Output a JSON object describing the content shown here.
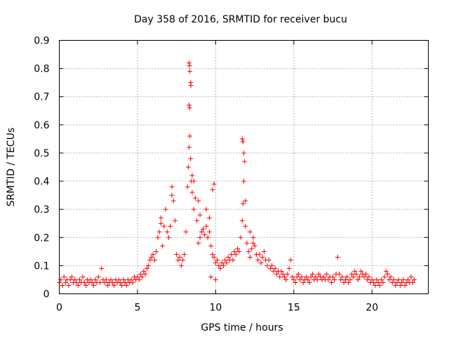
{
  "chart_data": {
    "type": "scatter",
    "title": "Day 358 of 2016, SRMTID for receiver bucu",
    "xlabel": "GPS time / hours",
    "ylabel": "SRMTID / TECUs",
    "xlim": [
      0,
      23.6
    ],
    "ylim": [
      0,
      0.9
    ],
    "xticks": [
      0,
      5,
      10,
      15,
      20
    ],
    "yticks": [
      0,
      0.1,
      0.2,
      0.3,
      0.4,
      0.5,
      0.6,
      0.7,
      0.8,
      0.9
    ],
    "xtick_labels": [
      "0",
      "5",
      "10",
      "15",
      "20"
    ],
    "ytick_labels": [
      "0",
      "0.1",
      "0.2",
      "0.3",
      "0.4",
      "0.5",
      "0.6",
      "0.7",
      "0.8",
      "0.9"
    ],
    "grid": true,
    "marker": "+",
    "color": "#ff0000",
    "series": [
      {
        "name": "SRMTID",
        "points": [
          [
            0.0,
            0.04
          ],
          [
            0.1,
            0.05
          ],
          [
            0.2,
            0.03
          ],
          [
            0.3,
            0.06
          ],
          [
            0.4,
            0.04
          ],
          [
            0.5,
            0.05
          ],
          [
            0.6,
            0.03
          ],
          [
            0.7,
            0.05
          ],
          [
            0.8,
            0.06
          ],
          [
            0.9,
            0.04
          ],
          [
            1.0,
            0.05
          ],
          [
            1.1,
            0.04
          ],
          [
            1.2,
            0.03
          ],
          [
            1.3,
            0.05
          ],
          [
            1.4,
            0.04
          ],
          [
            1.5,
            0.06
          ],
          [
            1.6,
            0.04
          ],
          [
            1.7,
            0.03
          ],
          [
            1.8,
            0.05
          ],
          [
            1.9,
            0.04
          ],
          [
            2.0,
            0.05
          ],
          [
            2.1,
            0.04
          ],
          [
            2.2,
            0.03
          ],
          [
            2.3,
            0.05
          ],
          [
            2.4,
            0.04
          ],
          [
            2.5,
            0.06
          ],
          [
            2.6,
            0.04
          ],
          [
            2.7,
            0.09
          ],
          [
            2.8,
            0.05
          ],
          [
            2.9,
            0.04
          ],
          [
            3.0,
            0.05
          ],
          [
            3.1,
            0.03
          ],
          [
            3.2,
            0.04
          ],
          [
            3.3,
            0.05
          ],
          [
            3.4,
            0.04
          ],
          [
            3.5,
            0.03
          ],
          [
            3.6,
            0.05
          ],
          [
            3.7,
            0.04
          ],
          [
            3.8,
            0.05
          ],
          [
            3.9,
            0.04
          ],
          [
            4.0,
            0.03
          ],
          [
            4.1,
            0.05
          ],
          [
            4.2,
            0.04
          ],
          [
            4.3,
            0.03
          ],
          [
            4.4,
            0.05
          ],
          [
            4.5,
            0.04
          ],
          [
            4.6,
            0.05
          ],
          [
            4.7,
            0.04
          ],
          [
            4.8,
            0.06
          ],
          [
            4.9,
            0.05
          ],
          [
            5.0,
            0.06
          ],
          [
            5.1,
            0.05
          ],
          [
            5.2,
            0.07
          ],
          [
            5.3,
            0.06
          ],
          [
            5.4,
            0.08
          ],
          [
            5.5,
            0.07
          ],
          [
            5.6,
            0.09
          ],
          [
            5.7,
            0.1
          ],
          [
            5.8,
            0.12
          ],
          [
            5.9,
            0.13
          ],
          [
            6.0,
            0.14
          ],
          [
            6.1,
            0.12
          ],
          [
            6.2,
            0.15
          ],
          [
            6.3,
            0.2
          ],
          [
            6.4,
            0.22
          ],
          [
            6.5,
            0.25
          ],
          [
            6.6,
            0.17
          ],
          [
            6.7,
            0.24
          ],
          [
            6.8,
            0.3
          ],
          [
            6.9,
            0.22
          ],
          [
            7.0,
            0.2
          ],
          [
            7.1,
            0.24
          ],
          [
            7.2,
            0.38
          ],
          [
            7.3,
            0.33
          ],
          [
            7.4,
            0.26
          ],
          [
            7.5,
            0.14
          ],
          [
            7.6,
            0.12
          ],
          [
            7.7,
            0.13
          ],
          [
            7.8,
            0.1
          ],
          [
            7.9,
            0.12
          ],
          [
            8.0,
            0.14
          ],
          [
            8.1,
            0.22
          ],
          [
            8.2,
            0.38
          ],
          [
            8.25,
            0.45
          ],
          [
            8.3,
            0.52
          ],
          [
            8.35,
            0.56
          ],
          [
            8.4,
            0.48
          ],
          [
            8.45,
            0.4
          ],
          [
            8.5,
            0.36
          ],
          [
            8.6,
            0.3
          ],
          [
            8.7,
            0.34
          ],
          [
            8.8,
            0.26
          ],
          [
            8.9,
            0.18
          ],
          [
            9.0,
            0.2
          ],
          [
            9.1,
            0.22
          ],
          [
            9.2,
            0.23
          ],
          [
            9.3,
            0.21
          ],
          [
            9.4,
            0.24
          ],
          [
            9.5,
            0.2
          ],
          [
            9.6,
            0.22
          ],
          [
            9.7,
            0.17
          ],
          [
            9.8,
            0.14
          ],
          [
            9.9,
            0.13
          ],
          [
            10.0,
            0.11
          ],
          [
            10.1,
            0.12
          ],
          [
            10.2,
            0.1
          ],
          [
            10.3,
            0.09
          ],
          [
            10.4,
            0.11
          ],
          [
            10.5,
            0.1
          ],
          [
            10.6,
            0.12
          ],
          [
            10.7,
            0.11
          ],
          [
            10.8,
            0.13
          ],
          [
            10.9,
            0.12
          ],
          [
            11.0,
            0.14
          ],
          [
            11.1,
            0.12
          ],
          [
            11.2,
            0.15
          ],
          [
            11.3,
            0.14
          ],
          [
            11.4,
            0.16
          ],
          [
            11.5,
            0.15
          ],
          [
            11.6,
            0.2
          ],
          [
            11.7,
            0.26
          ],
          [
            11.75,
            0.32
          ],
          [
            11.8,
            0.4
          ],
          [
            11.9,
            0.24
          ],
          [
            12.0,
            0.18
          ],
          [
            12.1,
            0.15
          ],
          [
            12.2,
            0.13
          ],
          [
            12.3,
            0.16
          ],
          [
            12.4,
            0.18
          ],
          [
            12.5,
            0.17
          ],
          [
            12.6,
            0.14
          ],
          [
            12.7,
            0.12
          ],
          [
            12.8,
            0.14
          ],
          [
            12.9,
            0.11
          ],
          [
            13.0,
            0.13
          ],
          [
            13.1,
            0.15
          ],
          [
            13.2,
            0.12
          ],
          [
            13.3,
            0.1
          ],
          [
            13.4,
            0.12
          ],
          [
            13.5,
            0.09
          ],
          [
            13.6,
            0.1
          ],
          [
            13.7,
            0.08
          ],
          [
            13.8,
            0.09
          ],
          [
            13.9,
            0.07
          ],
          [
            14.0,
            0.08
          ],
          [
            14.1,
            0.06
          ],
          [
            14.2,
            0.08
          ],
          [
            14.3,
            0.07
          ],
          [
            14.4,
            0.06
          ],
          [
            14.5,
            0.05
          ],
          [
            14.6,
            0.07
          ],
          [
            14.7,
            0.09
          ],
          [
            14.8,
            0.12
          ],
          [
            14.9,
            0.06
          ],
          [
            15.0,
            0.05
          ],
          [
            15.1,
            0.04
          ],
          [
            15.2,
            0.06
          ],
          [
            15.3,
            0.07
          ],
          [
            15.4,
            0.05
          ],
          [
            15.5,
            0.06
          ],
          [
            15.6,
            0.04
          ],
          [
            15.7,
            0.05
          ],
          [
            15.8,
            0.06
          ],
          [
            15.9,
            0.05
          ],
          [
            16.0,
            0.04
          ],
          [
            16.1,
            0.06
          ],
          [
            16.2,
            0.07
          ],
          [
            16.3,
            0.05
          ],
          [
            16.4,
            0.06
          ],
          [
            16.5,
            0.05
          ],
          [
            16.6,
            0.07
          ],
          [
            16.7,
            0.06
          ],
          [
            16.8,
            0.05
          ],
          [
            16.9,
            0.06
          ],
          [
            17.0,
            0.05
          ],
          [
            17.1,
            0.07
          ],
          [
            17.2,
            0.05
          ],
          [
            17.3,
            0.06
          ],
          [
            17.4,
            0.04
          ],
          [
            17.5,
            0.06
          ],
          [
            17.6,
            0.05
          ],
          [
            17.7,
            0.07
          ],
          [
            17.8,
            0.13
          ],
          [
            17.9,
            0.07
          ],
          [
            18.0,
            0.05
          ],
          [
            18.1,
            0.06
          ],
          [
            18.2,
            0.04
          ],
          [
            18.3,
            0.05
          ],
          [
            18.4,
            0.06
          ],
          [
            18.5,
            0.04
          ],
          [
            18.6,
            0.05
          ],
          [
            18.7,
            0.07
          ],
          [
            18.8,
            0.06
          ],
          [
            18.9,
            0.08
          ],
          [
            19.0,
            0.07
          ],
          [
            19.1,
            0.05
          ],
          [
            19.2,
            0.06
          ],
          [
            19.3,
            0.08
          ],
          [
            19.4,
            0.07
          ],
          [
            19.5,
            0.06
          ],
          [
            19.6,
            0.07
          ],
          [
            19.7,
            0.05
          ],
          [
            19.8,
            0.06
          ],
          [
            19.9,
            0.04
          ],
          [
            20.0,
            0.05
          ],
          [
            20.1,
            0.04
          ],
          [
            20.2,
            0.03
          ],
          [
            20.3,
            0.05
          ],
          [
            20.4,
            0.04
          ],
          [
            20.5,
            0.03
          ],
          [
            20.6,
            0.05
          ],
          [
            20.7,
            0.04
          ],
          [
            20.8,
            0.06
          ],
          [
            20.9,
            0.08
          ],
          [
            21.0,
            0.07
          ],
          [
            21.1,
            0.05
          ],
          [
            21.2,
            0.06
          ],
          [
            21.3,
            0.04
          ],
          [
            21.4,
            0.05
          ],
          [
            21.5,
            0.03
          ],
          [
            21.6,
            0.04
          ],
          [
            21.7,
            0.05
          ],
          [
            21.8,
            0.03
          ],
          [
            21.9,
            0.04
          ],
          [
            22.0,
            0.05
          ],
          [
            22.1,
            0.03
          ],
          [
            22.2,
            0.04
          ],
          [
            22.3,
            0.05
          ],
          [
            22.4,
            0.04
          ],
          [
            22.5,
            0.06
          ],
          [
            22.6,
            0.04
          ],
          [
            22.7,
            0.05
          ],
          [
            8.3,
            0.82
          ],
          [
            8.32,
            0.81
          ],
          [
            8.35,
            0.79
          ],
          [
            8.4,
            0.75
          ],
          [
            8.42,
            0.74
          ],
          [
            8.3,
            0.67
          ],
          [
            8.33,
            0.66
          ],
          [
            11.7,
            0.55
          ],
          [
            11.75,
            0.54
          ],
          [
            11.8,
            0.5
          ],
          [
            11.85,
            0.47
          ],
          [
            8.5,
            0.42
          ],
          [
            8.6,
            0.4
          ],
          [
            9.9,
            0.39
          ],
          [
            9.8,
            0.37
          ],
          [
            11.9,
            0.33
          ],
          [
            9.0,
            0.28
          ],
          [
            9.4,
            0.3
          ],
          [
            8.9,
            0.33
          ],
          [
            6.5,
            0.27
          ],
          [
            7.2,
            0.35
          ],
          [
            12.2,
            0.22
          ],
          [
            12.4,
            0.2
          ],
          [
            9.6,
            0.27
          ],
          [
            10.0,
            0.05
          ],
          [
            9.7,
            0.06
          ]
        ]
      }
    ]
  }
}
